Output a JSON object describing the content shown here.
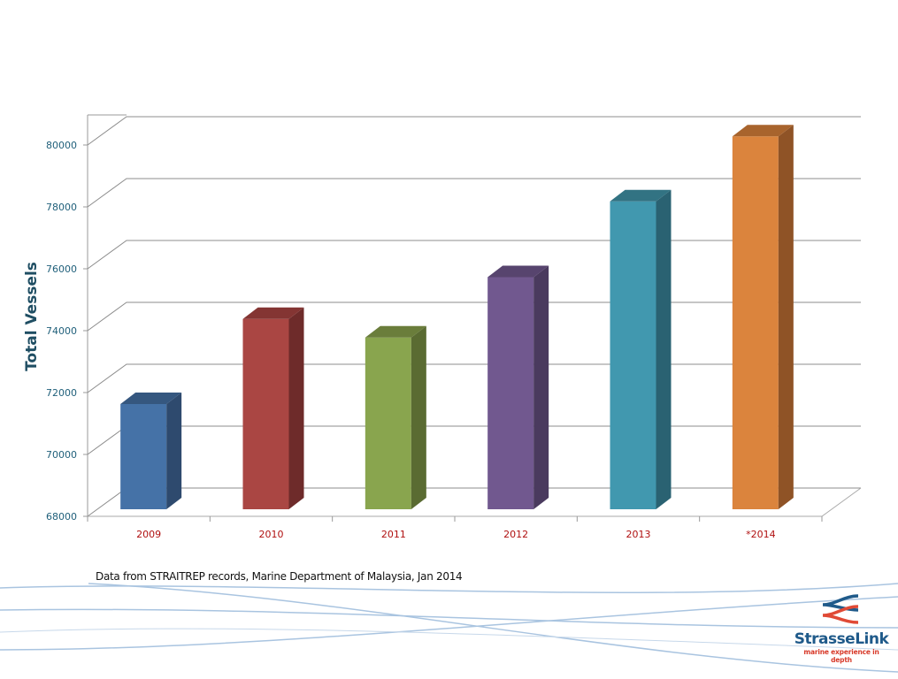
{
  "chart_data": {
    "type": "bar",
    "style": "3d-column",
    "title": "",
    "xlabel": "",
    "ylabel": "Total Vessels",
    "categories": [
      "2009",
      "2010",
      "2011",
      "2012",
      "2013",
      "*2014"
    ],
    "values": [
      71400,
      74150,
      73550,
      75500,
      77950,
      80050
    ],
    "colors": [
      "#4572a7",
      "#aa4643",
      "#89a54e",
      "#71588f",
      "#4198af",
      "#db843d"
    ],
    "side_colors": [
      "#2e4a6e",
      "#6e2b2a",
      "#5a6b32",
      "#4a3a5e",
      "#2a6272",
      "#8f5326"
    ],
    "top_colors": [
      "#35577f",
      "#843533",
      "#6a7d3b",
      "#57446e",
      "#327383",
      "#a8642d"
    ],
    "ylim": [
      68000,
      80000
    ],
    "yticks": [
      "68000",
      "70000",
      "72000",
      "74000",
      "76000",
      "78000",
      "80000"
    ],
    "grid": true,
    "legend": "none"
  },
  "footer": {
    "source_note": "Data from STRAITREP records, Marine Department of Malaysia, Jan 2014"
  },
  "logo": {
    "name": "StrasseLink",
    "tagline": "marine experience in depth"
  }
}
